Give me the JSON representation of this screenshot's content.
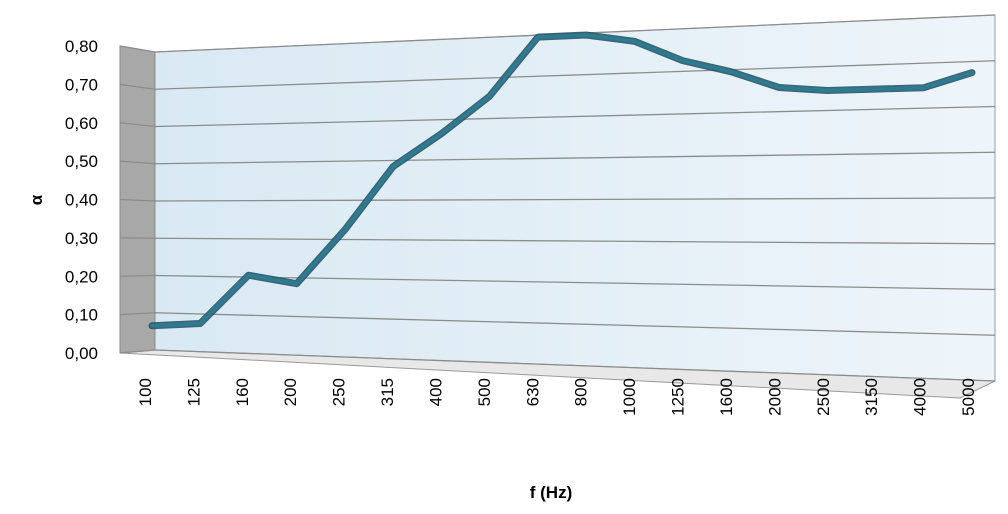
{
  "chart_data": {
    "type": "line",
    "title": "",
    "xlabel": "f (Hz)",
    "ylabel": "α",
    "ylim": [
      0,
      0.8
    ],
    "yticks": [
      "0,00",
      "0,10",
      "0,20",
      "0,30",
      "0,40",
      "0,50",
      "0,60",
      "0,70",
      "0,80"
    ],
    "categories": [
      "100",
      "125",
      "160",
      "200",
      "250",
      "315",
      "400",
      "500",
      "630",
      "800",
      "1000",
      "1250",
      "1600",
      "2000",
      "2500",
      "3150",
      "4000",
      "5000"
    ],
    "series": [
      {
        "values": [
          0.07,
          0.08,
          0.21,
          0.19,
          0.33,
          0.49,
          0.57,
          0.66,
          0.8,
          0.8,
          0.78,
          0.73,
          0.7,
          0.66,
          0.65,
          0.65,
          0.65,
          0.68
        ],
        "color": "#2e7a91"
      }
    ],
    "grid": true,
    "style": "3d-perspective"
  }
}
